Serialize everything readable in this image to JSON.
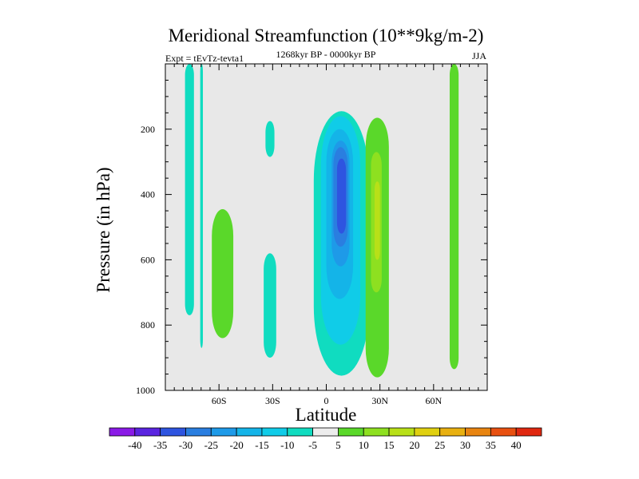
{
  "chart_data": {
    "type": "contour",
    "title": "Meridional Streamfunction (10**9kg/m-2)",
    "subtitle_left": "Expt = tEvTz-tevta1",
    "subtitle_center": "1268kyr BP - 0000kyr BP",
    "subtitle_right": "JJA",
    "xlabel": "Latitude",
    "ylabel": "Pressure (in hPa)",
    "xlim": [
      -90,
      90
    ],
    "ylim": [
      1000,
      0
    ],
    "x_ticks": [
      {
        "value": -60,
        "label": "60S"
      },
      {
        "value": -30,
        "label": "30S"
      },
      {
        "value": 0,
        "label": "0"
      },
      {
        "value": 30,
        "label": "30N"
      },
      {
        "value": 60,
        "label": "60N"
      }
    ],
    "y_ticks": [
      {
        "value": 200,
        "label": "200"
      },
      {
        "value": 400,
        "label": "400"
      },
      {
        "value": 600,
        "label": "600"
      },
      {
        "value": 800,
        "label": "800"
      },
      {
        "value": 1000,
        "label": "1000"
      }
    ],
    "colorbar": {
      "labels": [
        "-40",
        "-35",
        "-30",
        "-25",
        "-20",
        "-15",
        "-10",
        "-5",
        "5",
        "10",
        "15",
        "20",
        "25",
        "30",
        "35",
        "40"
      ],
      "colors": [
        "#8a1ae6",
        "#5a24e0",
        "#2e54e0",
        "#2a7ee0",
        "#1e9ae8",
        "#14b4e8",
        "#10cce8",
        "#10dcc0",
        "#ececec",
        "#5ad82a",
        "#8ee020",
        "#b8e018",
        "#e0d010",
        "#e8b010",
        "#e88410",
        "#e85010",
        "#e02810"
      ]
    },
    "contour_regions": [
      {
        "level": -5,
        "color": "#10dcc0",
        "lat": [
          -79,
          -74
        ],
        "p": [
          0,
          770
        ]
      },
      {
        "level": -5,
        "color": "#10dcc0",
        "lat": [
          -70.5,
          -69
        ],
        "p": [
          0,
          870
        ]
      },
      {
        "level": 5,
        "color": "#5ad82a",
        "lat": [
          -64,
          -52
        ],
        "p": [
          445,
          840
        ]
      },
      {
        "level": -5,
        "color": "#10dcc0",
        "lat": [
          -34,
          -29
        ],
        "p": [
          175,
          285
        ]
      },
      {
        "level": -5,
        "color": "#10dcc0",
        "lat": [
          -35,
          -28
        ],
        "p": [
          580,
          900
        ]
      },
      {
        "level": -5,
        "color": "#10dcc0",
        "lat": [
          -7,
          24
        ],
        "p": [
          145,
          955
        ]
      },
      {
        "level": -10,
        "color": "#10cce8",
        "lat": [
          -3,
          19
        ],
        "p": [
          160,
          860
        ]
      },
      {
        "level": -15,
        "color": "#14b4e8",
        "lat": [
          0,
          15
        ],
        "p": [
          200,
          720
        ]
      },
      {
        "level": -20,
        "color": "#1e9ae8",
        "lat": [
          3,
          13
        ],
        "p": [
          235,
          620
        ]
      },
      {
        "level": -25,
        "color": "#2a7ee0",
        "lat": [
          4,
          12
        ],
        "p": [
          255,
          560
        ]
      },
      {
        "level": -30,
        "color": "#2e54e0",
        "lat": [
          6,
          11
        ],
        "p": [
          290,
          520
        ]
      },
      {
        "level": 5,
        "color": "#5ad82a",
        "lat": [
          22,
          35
        ],
        "p": [
          165,
          960
        ]
      },
      {
        "level": 10,
        "color": "#8ee020",
        "lat": [
          25,
          31
        ],
        "p": [
          270,
          700
        ]
      },
      {
        "level": 15,
        "color": "#b8e018",
        "lat": [
          27,
          30
        ],
        "p": [
          360,
          600
        ]
      },
      {
        "level": 5,
        "color": "#5ad82a",
        "lat": [
          69,
          74
        ],
        "p": [
          0,
          935
        ]
      }
    ]
  }
}
